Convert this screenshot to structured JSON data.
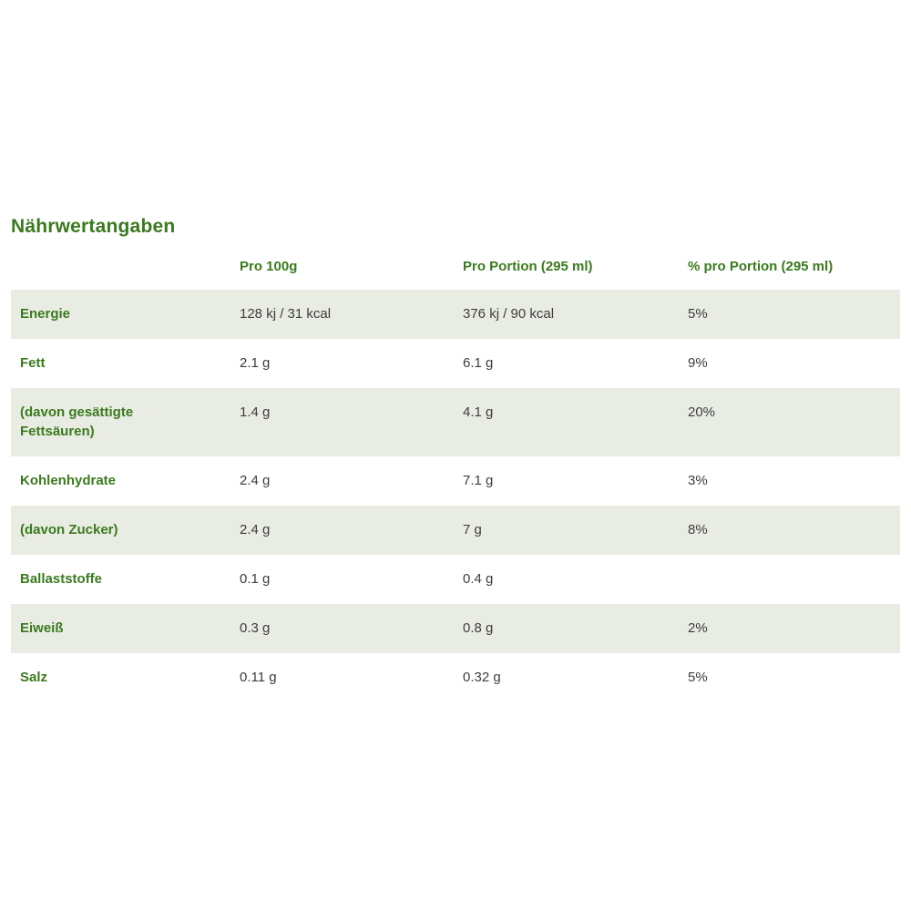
{
  "colors": {
    "accent_green": "#3a7a1e",
    "row_alt_background": "#e9ece3",
    "value_text": "#3d3d3d"
  },
  "section": {
    "title": "Nährwertangaben"
  },
  "table": {
    "columns": {
      "label": "",
      "per100g": "Pro 100g",
      "perPortion": "Pro Portion (295 ml)",
      "percentPerPortion": "% pro Portion (295 ml)"
    },
    "rows": [
      {
        "label": "Energie",
        "per100g": "128 kj / 31 kcal",
        "perPortion": "376 kj / 90 kcal",
        "percent": "5%"
      },
      {
        "label": "Fett",
        "per100g": "2.1 g",
        "perPortion": "6.1 g",
        "percent": "9%"
      },
      {
        "label": "(davon gesättigte Fettsäuren)",
        "per100g": "1.4 g",
        "perPortion": "4.1 g",
        "percent": "20%"
      },
      {
        "label": "Kohlenhydrate",
        "per100g": "2.4 g",
        "perPortion": "7.1 g",
        "percent": "3%"
      },
      {
        "label": "(davon Zucker)",
        "per100g": "2.4 g",
        "perPortion": "7 g",
        "percent": "8%"
      },
      {
        "label": "Ballaststoffe",
        "per100g": "0.1 g",
        "perPortion": "0.4 g",
        "percent": ""
      },
      {
        "label": "Eiweiß",
        "per100g": "0.3 g",
        "perPortion": "0.8 g",
        "percent": "2%"
      },
      {
        "label": "Salz",
        "per100g": "0.11 g",
        "perPortion": "0.32 g",
        "percent": "5%"
      }
    ]
  }
}
